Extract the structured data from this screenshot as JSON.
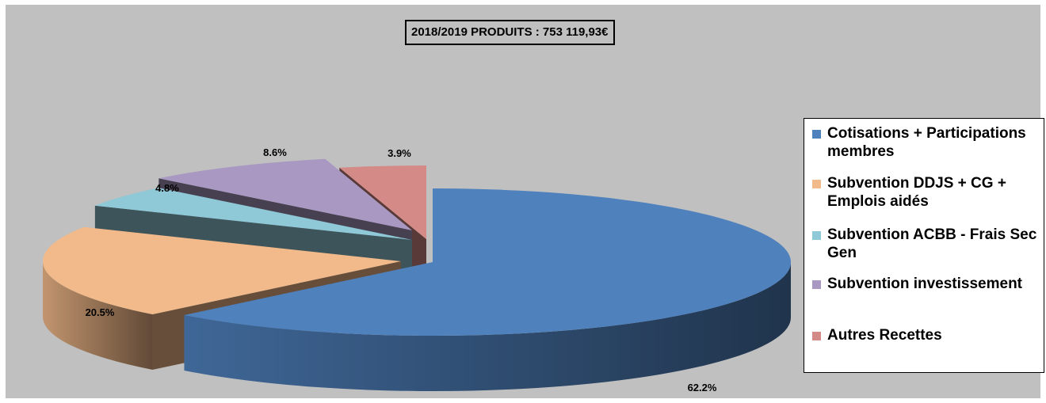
{
  "chart_data": {
    "type": "pie",
    "title": "2018/2019 PRODUITS : 753 119,93€",
    "categories": [
      "Cotisations + Participations membres",
      "Subvention DDJS + CG + Emplois aidés",
      "Subvention ACBB - Frais Sec Gen",
      "Subvention investissement",
      "Autres Recettes"
    ],
    "values": [
      62.2,
      20.5,
      4.8,
      8.6,
      3.9
    ],
    "labels": [
      "62.2%",
      "20.5%",
      "4.8%",
      "8.6%",
      "3.9%"
    ],
    "colors": [
      "#4f81bd",
      "#f2ba8a",
      "#8fc8d6",
      "#a898c2",
      "#d48a87"
    ],
    "legend_position": "right",
    "style": "3d-exploded"
  }
}
